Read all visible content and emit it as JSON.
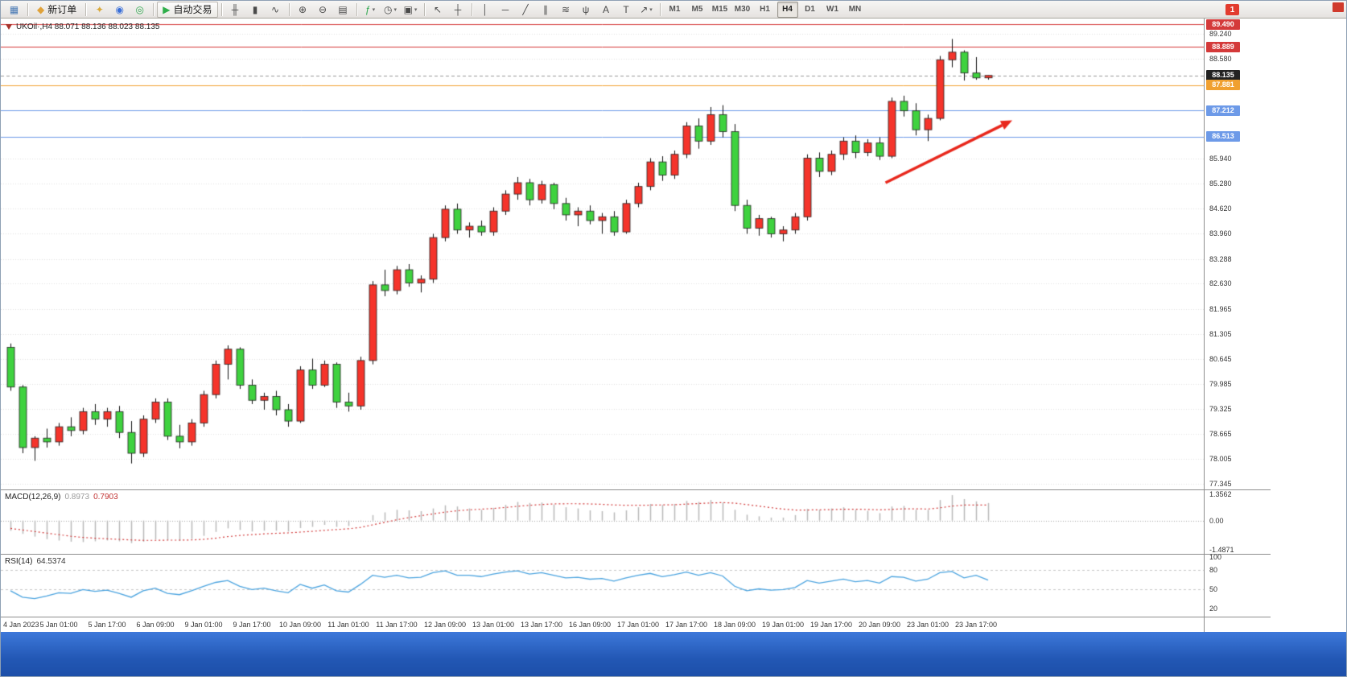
{
  "toolbar": {
    "groups": [
      {
        "items": [
          {
            "name": "new-chart",
            "glyph": "▦",
            "color": "#4a7ab5"
          }
        ]
      },
      {
        "items": [
          {
            "name": "new-order",
            "glyph": "◆",
            "color": "#e0a23a",
            "label": "新订单"
          }
        ]
      },
      {
        "items": [
          {
            "name": "metaeditor",
            "glyph": "✦",
            "color": "#d9a93a"
          },
          {
            "name": "market-watch",
            "glyph": "◉",
            "color": "#3a6fd9"
          },
          {
            "name": "alerts",
            "glyph": "◎",
            "color": "#2fa84f"
          }
        ]
      },
      {
        "items": [
          {
            "name": "autotrading",
            "glyph": "▶",
            "color": "#2fae4a",
            "label": "自动交易",
            "toggled": true
          }
        ]
      },
      {
        "items": [
          {
            "name": "bar-chart",
            "glyph": "╫"
          },
          {
            "name": "candlestick-chart",
            "glyph": "▮"
          },
          {
            "name": "line-chart",
            "glyph": "∿"
          }
        ]
      },
      {
        "items": [
          {
            "name": "zoom-in",
            "glyph": "⊕"
          },
          {
            "name": "zoom-out",
            "glyph": "⊖"
          },
          {
            "name": "tile-windows",
            "glyph": "▤"
          }
        ]
      },
      {
        "items": [
          {
            "name": "indicators",
            "glyph": "ƒ",
            "color": "#2fa84f",
            "dd": true
          },
          {
            "name": "periods",
            "glyph": "◷",
            "dd": true
          },
          {
            "name": "templates",
            "glyph": "▣",
            "dd": true
          }
        ]
      },
      {
        "items": [
          {
            "name": "cursor",
            "glyph": "↖"
          },
          {
            "name": "crosshair",
            "glyph": "┼"
          }
        ]
      },
      {
        "items": [
          {
            "name": "vertical-line",
            "glyph": "│"
          },
          {
            "name": "horizontal-line",
            "glyph": "─"
          },
          {
            "name": "trendline",
            "glyph": "╱"
          },
          {
            "name": "equidistant-channel",
            "glyph": "∥"
          },
          {
            "name": "fibonacci",
            "glyph": "≋"
          },
          {
            "name": "andrews-pitchfork",
            "glyph": "ψ"
          },
          {
            "name": "text",
            "glyph": "A"
          },
          {
            "name": "text-label",
            "glyph": "T"
          },
          {
            "name": "arrows",
            "glyph": "↗",
            "dd": true
          }
        ]
      }
    ],
    "timeframes": [
      "M1",
      "M5",
      "M15",
      "M30",
      "H1",
      "H4",
      "D1",
      "W1",
      "MN"
    ],
    "active_timeframe": "H4",
    "notification_count": "1"
  },
  "chart": {
    "symbol_line": "UKOil·,H4  88.071 88.136 88.023 88.135",
    "macd_label": "MACD(12,26,9)",
    "macd_value_1": "0.8973",
    "macd_value_2": "0.7903",
    "rsi_label": "RSI(14)",
    "rsi_value": "64.5374"
  },
  "chart_data": {
    "type": "candlestick",
    "symbol": "UKOil",
    "timeframe": "H4",
    "current_ohlc": {
      "open": 88.071,
      "high": 88.136,
      "low": 88.023,
      "close": 88.135
    },
    "up_color": "#f5342b",
    "down_color": "#3fd23f",
    "candles": [
      [
        80.95,
        81.05,
        79.8,
        79.9
      ],
      [
        79.9,
        79.95,
        78.15,
        78.3
      ],
      [
        78.3,
        78.6,
        77.95,
        78.55
      ],
      [
        78.55,
        78.8,
        78.3,
        78.45
      ],
      [
        78.45,
        78.95,
        78.35,
        78.85
      ],
      [
        78.85,
        79.1,
        78.6,
        78.75
      ],
      [
        78.75,
        79.35,
        78.65,
        79.25
      ],
      [
        79.25,
        79.45,
        78.9,
        79.05
      ],
      [
        79.05,
        79.35,
        78.85,
        79.25
      ],
      [
        79.25,
        79.4,
        78.55,
        78.7
      ],
      [
        78.7,
        79.0,
        77.88,
        78.15
      ],
      [
        78.15,
        79.15,
        78.05,
        79.05
      ],
      [
        79.05,
        79.6,
        78.95,
        79.5
      ],
      [
        79.5,
        79.6,
        78.5,
        78.6
      ],
      [
        78.6,
        78.9,
        78.28,
        78.45
      ],
      [
        78.45,
        79.05,
        78.35,
        78.95
      ],
      [
        78.95,
        79.8,
        78.85,
        79.7
      ],
      [
        79.7,
        80.6,
        79.6,
        80.5
      ],
      [
        80.5,
        81.0,
        80.1,
        80.9
      ],
      [
        80.9,
        80.95,
        79.85,
        79.95
      ],
      [
        79.95,
        80.1,
        79.45,
        79.55
      ],
      [
        79.55,
        79.75,
        79.3,
        79.65
      ],
      [
        79.65,
        79.8,
        79.15,
        79.3
      ],
      [
        79.3,
        79.45,
        78.85,
        79.0
      ],
      [
        79.0,
        80.45,
        78.95,
        80.35
      ],
      [
        80.35,
        80.65,
        79.85,
        79.95
      ],
      [
        79.95,
        80.6,
        79.9,
        80.5
      ],
      [
        80.5,
        80.55,
        79.35,
        79.5
      ],
      [
        79.5,
        79.75,
        79.25,
        79.4
      ],
      [
        79.4,
        80.7,
        79.3,
        80.6
      ],
      [
        80.6,
        82.7,
        80.5,
        82.6
      ],
      [
        82.6,
        83.0,
        82.3,
        82.45
      ],
      [
        82.45,
        83.1,
        82.35,
        83.0
      ],
      [
        83.0,
        83.15,
        82.55,
        82.65
      ],
      [
        82.65,
        82.85,
        82.4,
        82.75
      ],
      [
        82.75,
        83.95,
        82.65,
        83.85
      ],
      [
        83.85,
        84.7,
        83.75,
        84.6
      ],
      [
        84.6,
        84.75,
        83.95,
        84.05
      ],
      [
        84.05,
        84.25,
        83.85,
        84.15
      ],
      [
        84.15,
        84.3,
        83.9,
        84.0
      ],
      [
        84.0,
        84.65,
        83.9,
        84.55
      ],
      [
        84.55,
        85.1,
        84.45,
        85.0
      ],
      [
        85.0,
        85.45,
        84.85,
        85.3
      ],
      [
        85.3,
        85.4,
        84.7,
        84.85
      ],
      [
        84.85,
        85.35,
        84.75,
        85.25
      ],
      [
        85.25,
        85.3,
        84.6,
        84.75
      ],
      [
        84.75,
        84.9,
        84.3,
        84.45
      ],
      [
        84.45,
        84.65,
        84.15,
        84.55
      ],
      [
        84.55,
        84.7,
        84.2,
        84.3
      ],
      [
        84.3,
        84.5,
        83.95,
        84.4
      ],
      [
        84.4,
        84.55,
        83.9,
        84.0
      ],
      [
        84.0,
        84.85,
        83.95,
        84.75
      ],
      [
        84.75,
        85.3,
        84.65,
        85.2
      ],
      [
        85.2,
        85.95,
        85.1,
        85.85
      ],
      [
        85.85,
        86.0,
        85.35,
        85.5
      ],
      [
        85.5,
        86.15,
        85.4,
        86.05
      ],
      [
        86.05,
        86.9,
        85.95,
        86.8
      ],
      [
        86.8,
        87.0,
        86.2,
        86.4
      ],
      [
        86.4,
        87.3,
        86.3,
        87.1
      ],
      [
        87.1,
        87.35,
        86.5,
        86.65
      ],
      [
        86.65,
        86.85,
        84.55,
        84.7
      ],
      [
        84.7,
        84.85,
        83.95,
        84.1
      ],
      [
        84.1,
        84.45,
        83.9,
        84.35
      ],
      [
        84.35,
        84.4,
        83.85,
        83.95
      ],
      [
        83.95,
        84.15,
        83.75,
        84.05
      ],
      [
        84.05,
        84.5,
        83.95,
        84.4
      ],
      [
        84.4,
        86.05,
        84.3,
        85.95
      ],
      [
        85.95,
        86.1,
        85.45,
        85.6
      ],
      [
        85.6,
        86.15,
        85.5,
        86.05
      ],
      [
        86.05,
        86.5,
        85.9,
        86.4
      ],
      [
        86.4,
        86.55,
        85.95,
        86.1
      ],
      [
        86.1,
        86.45,
        86.0,
        86.35
      ],
      [
        86.35,
        86.5,
        85.9,
        86.0
      ],
      [
        86.0,
        87.55,
        85.95,
        87.45
      ],
      [
        87.45,
        87.6,
        87.05,
        87.2
      ],
      [
        87.2,
        87.4,
        86.55,
        86.7
      ],
      [
        86.7,
        87.1,
        86.4,
        87.0
      ],
      [
        87.0,
        88.65,
        86.95,
        88.55
      ],
      [
        88.55,
        89.1,
        88.35,
        88.75
      ],
      [
        88.75,
        88.8,
        88.0,
        88.2
      ],
      [
        88.2,
        88.62,
        88.02,
        88.07
      ],
      [
        88.071,
        88.136,
        88.023,
        88.135
      ]
    ],
    "time_labels": [
      "4 Jan 2023",
      "5 Jan 01:00",
      "5 Jan 17:00",
      "6 Jan 09:00",
      "9 Jan 01:00",
      "9 Jan 17:00",
      "10 Jan 09:00",
      "11 Jan 01:00",
      "11 Jan 17:00",
      "12 Jan 09:00",
      "13 Jan 01:00",
      "13 Jan 17:00",
      "16 Jan 09:00",
      "17 Jan 01:00",
      "17 Jan 17:00",
      "18 Jan 09:00",
      "19 Jan 01:00",
      "19 Jan 17:00",
      "20 Jan 09:00",
      "23 Jan 01:00",
      "23 Jan 17:00"
    ],
    "label_every": 4,
    "h_lines": [
      {
        "price": 89.49,
        "color": "#d43a3a"
      },
      {
        "price": 88.889,
        "color": "#d43a3a"
      },
      {
        "price": 87.881,
        "color": "#f0a030"
      },
      {
        "price": 87.212,
        "color": "#6d9ae8"
      },
      {
        "price": 86.513,
        "color": "#6d9ae8"
      }
    ],
    "current_price": 88.135,
    "y_ticks": [
      "89.240",
      "88.580",
      "85.940",
      "85.280",
      "84.620",
      "83.960",
      "83.288",
      "82.630",
      "81.965",
      "81.305",
      "80.645",
      "79.985",
      "79.325",
      "78.665",
      "78.005",
      "77.345"
    ],
    "badges": [
      {
        "text": "89.490",
        "bg": "#d43a3a",
        "fg": "#ffffff"
      },
      {
        "text": "88.889",
        "bg": "#d43a3a",
        "fg": "#ffffff"
      },
      {
        "text": "88.135",
        "bg": "#222222",
        "fg": "#ffffff"
      },
      {
        "text": "87.881",
        "bg": "#f0a030",
        "fg": "#ffffff"
      },
      {
        "text": "87.212",
        "bg": "#6d9ae8",
        "fg": "#ffffff"
      },
      {
        "text": "86.513",
        "bg": "#6d9ae8",
        "fg": "#ffffff"
      }
    ],
    "macd": {
      "name": "MACD(12,26,9)",
      "histogram": [
        -0.52,
        -0.68,
        -0.82,
        -0.95,
        -1.02,
        -1.08,
        -1.1,
        -1.06,
        -1.02,
        -1.06,
        -1.15,
        -1.08,
        -0.96,
        -1.0,
        -1.04,
        -0.94,
        -0.78,
        -0.58,
        -0.4,
        -0.48,
        -0.56,
        -0.52,
        -0.52,
        -0.56,
        -0.38,
        -0.32,
        -0.22,
        -0.32,
        -0.28,
        -0.06,
        0.28,
        0.42,
        0.55,
        0.52,
        0.48,
        0.62,
        0.78,
        0.72,
        0.62,
        0.55,
        0.65,
        0.8,
        0.95,
        0.9,
        0.92,
        0.82,
        0.68,
        0.62,
        0.52,
        0.48,
        0.42,
        0.52,
        0.68,
        0.85,
        0.8,
        0.85,
        1.0,
        0.95,
        1.05,
        0.92,
        0.55,
        0.3,
        0.22,
        0.15,
        0.15,
        0.28,
        0.6,
        0.55,
        0.62,
        0.68,
        0.55,
        0.5,
        0.38,
        0.72,
        0.75,
        0.55,
        0.55,
        1.05,
        1.3,
        1.1,
        0.98,
        0.8973
      ],
      "signal": [
        -0.4,
        -0.48,
        -0.56,
        -0.64,
        -0.72,
        -0.8,
        -0.86,
        -0.9,
        -0.93,
        -0.96,
        -0.99,
        -1.01,
        -1.01,
        -1.0,
        -1.0,
        -0.99,
        -0.96,
        -0.9,
        -0.82,
        -0.76,
        -0.72,
        -0.68,
        -0.65,
        -0.63,
        -0.59,
        -0.55,
        -0.5,
        -0.46,
        -0.42,
        -0.35,
        -0.22,
        -0.09,
        0.04,
        0.15,
        0.25,
        0.34,
        0.43,
        0.5,
        0.55,
        0.58,
        0.62,
        0.67,
        0.73,
        0.78,
        0.82,
        0.85,
        0.86,
        0.86,
        0.85,
        0.83,
        0.8,
        0.78,
        0.78,
        0.79,
        0.8,
        0.81,
        0.84,
        0.87,
        0.9,
        0.92,
        0.89,
        0.82,
        0.74,
        0.66,
        0.59,
        0.54,
        0.54,
        0.55,
        0.56,
        0.58,
        0.58,
        0.57,
        0.55,
        0.57,
        0.6,
        0.6,
        0.59,
        0.65,
        0.74,
        0.79,
        0.79,
        0.7903
      ],
      "scale_labels": [
        "1.3562",
        "0.00",
        "-1.4871"
      ],
      "histogram_color": "#b9b9b9",
      "signal_color": "#d23b3b"
    },
    "rsi": {
      "name": "RSI(14)",
      "values": [
        48,
        38,
        36,
        40,
        45,
        44,
        50,
        47,
        49,
        44,
        38,
        48,
        52,
        44,
        42,
        48,
        55,
        61,
        64,
        55,
        50,
        52,
        48,
        45,
        58,
        52,
        57,
        48,
        46,
        58,
        72,
        69,
        72,
        68,
        69,
        76,
        79,
        72,
        72,
        70,
        74,
        77,
        79,
        74,
        76,
        72,
        68,
        69,
        66,
        67,
        63,
        68,
        72,
        75,
        70,
        73,
        77,
        72,
        76,
        71,
        55,
        48,
        51,
        49,
        50,
        53,
        64,
        60,
        63,
        66,
        62,
        64,
        60,
        70,
        69,
        63,
        66,
        76,
        78,
        68,
        72,
        64.5
      ],
      "levels": [
        80,
        50
      ],
      "scale_labels": [
        "100",
        "80",
        "50",
        "20"
      ],
      "line_color": "#4aa3df"
    },
    "annotation_arrow": {
      "from_bar": 72.5,
      "from_price": 85.3,
      "to_bar": 83,
      "to_price": 86.95,
      "color": "#e8271c"
    }
  }
}
